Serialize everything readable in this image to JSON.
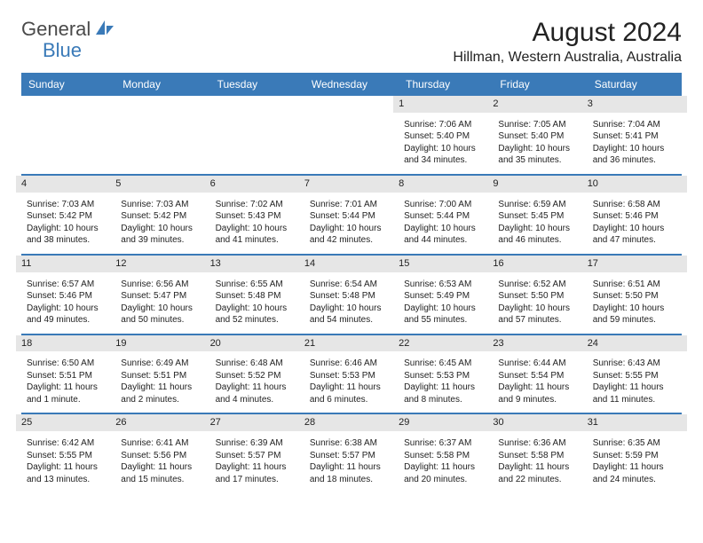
{
  "brand": {
    "part1": "General",
    "part2": "Blue"
  },
  "title": "August 2024",
  "location": "Hillman, Western Australia, Australia",
  "colors": {
    "header_bg": "#3a7ab8",
    "header_text": "#ffffff",
    "daybar_bg": "#e6e6e6",
    "text": "#222222",
    "brand_gray": "#4a4a4a",
    "brand_blue": "#3a7ab8",
    "page_bg": "#ffffff",
    "row_sep": "#3a7ab8"
  },
  "typography": {
    "title_fontsize": 30,
    "location_fontsize": 16,
    "dayhead_fontsize": 12,
    "cell_fontsize": 10
  },
  "day_names": [
    "Sunday",
    "Monday",
    "Tuesday",
    "Wednesday",
    "Thursday",
    "Friday",
    "Saturday"
  ],
  "weeks": [
    [
      null,
      null,
      null,
      null,
      {
        "d": "1",
        "sr": "Sunrise: 7:06 AM",
        "ss": "Sunset: 5:40 PM",
        "dl1": "Daylight: 10 hours",
        "dl2": "and 34 minutes."
      },
      {
        "d": "2",
        "sr": "Sunrise: 7:05 AM",
        "ss": "Sunset: 5:40 PM",
        "dl1": "Daylight: 10 hours",
        "dl2": "and 35 minutes."
      },
      {
        "d": "3",
        "sr": "Sunrise: 7:04 AM",
        "ss": "Sunset: 5:41 PM",
        "dl1": "Daylight: 10 hours",
        "dl2": "and 36 minutes."
      }
    ],
    [
      {
        "d": "4",
        "sr": "Sunrise: 7:03 AM",
        "ss": "Sunset: 5:42 PM",
        "dl1": "Daylight: 10 hours",
        "dl2": "and 38 minutes."
      },
      {
        "d": "5",
        "sr": "Sunrise: 7:03 AM",
        "ss": "Sunset: 5:42 PM",
        "dl1": "Daylight: 10 hours",
        "dl2": "and 39 minutes."
      },
      {
        "d": "6",
        "sr": "Sunrise: 7:02 AM",
        "ss": "Sunset: 5:43 PM",
        "dl1": "Daylight: 10 hours",
        "dl2": "and 41 minutes."
      },
      {
        "d": "7",
        "sr": "Sunrise: 7:01 AM",
        "ss": "Sunset: 5:44 PM",
        "dl1": "Daylight: 10 hours",
        "dl2": "and 42 minutes."
      },
      {
        "d": "8",
        "sr": "Sunrise: 7:00 AM",
        "ss": "Sunset: 5:44 PM",
        "dl1": "Daylight: 10 hours",
        "dl2": "and 44 minutes."
      },
      {
        "d": "9",
        "sr": "Sunrise: 6:59 AM",
        "ss": "Sunset: 5:45 PM",
        "dl1": "Daylight: 10 hours",
        "dl2": "and 46 minutes."
      },
      {
        "d": "10",
        "sr": "Sunrise: 6:58 AM",
        "ss": "Sunset: 5:46 PM",
        "dl1": "Daylight: 10 hours",
        "dl2": "and 47 minutes."
      }
    ],
    [
      {
        "d": "11",
        "sr": "Sunrise: 6:57 AM",
        "ss": "Sunset: 5:46 PM",
        "dl1": "Daylight: 10 hours",
        "dl2": "and 49 minutes."
      },
      {
        "d": "12",
        "sr": "Sunrise: 6:56 AM",
        "ss": "Sunset: 5:47 PM",
        "dl1": "Daylight: 10 hours",
        "dl2": "and 50 minutes."
      },
      {
        "d": "13",
        "sr": "Sunrise: 6:55 AM",
        "ss": "Sunset: 5:48 PM",
        "dl1": "Daylight: 10 hours",
        "dl2": "and 52 minutes."
      },
      {
        "d": "14",
        "sr": "Sunrise: 6:54 AM",
        "ss": "Sunset: 5:48 PM",
        "dl1": "Daylight: 10 hours",
        "dl2": "and 54 minutes."
      },
      {
        "d": "15",
        "sr": "Sunrise: 6:53 AM",
        "ss": "Sunset: 5:49 PM",
        "dl1": "Daylight: 10 hours",
        "dl2": "and 55 minutes."
      },
      {
        "d": "16",
        "sr": "Sunrise: 6:52 AM",
        "ss": "Sunset: 5:50 PM",
        "dl1": "Daylight: 10 hours",
        "dl2": "and 57 minutes."
      },
      {
        "d": "17",
        "sr": "Sunrise: 6:51 AM",
        "ss": "Sunset: 5:50 PM",
        "dl1": "Daylight: 10 hours",
        "dl2": "and 59 minutes."
      }
    ],
    [
      {
        "d": "18",
        "sr": "Sunrise: 6:50 AM",
        "ss": "Sunset: 5:51 PM",
        "dl1": "Daylight: 11 hours",
        "dl2": "and 1 minute."
      },
      {
        "d": "19",
        "sr": "Sunrise: 6:49 AM",
        "ss": "Sunset: 5:51 PM",
        "dl1": "Daylight: 11 hours",
        "dl2": "and 2 minutes."
      },
      {
        "d": "20",
        "sr": "Sunrise: 6:48 AM",
        "ss": "Sunset: 5:52 PM",
        "dl1": "Daylight: 11 hours",
        "dl2": "and 4 minutes."
      },
      {
        "d": "21",
        "sr": "Sunrise: 6:46 AM",
        "ss": "Sunset: 5:53 PM",
        "dl1": "Daylight: 11 hours",
        "dl2": "and 6 minutes."
      },
      {
        "d": "22",
        "sr": "Sunrise: 6:45 AM",
        "ss": "Sunset: 5:53 PM",
        "dl1": "Daylight: 11 hours",
        "dl2": "and 8 minutes."
      },
      {
        "d": "23",
        "sr": "Sunrise: 6:44 AM",
        "ss": "Sunset: 5:54 PM",
        "dl1": "Daylight: 11 hours",
        "dl2": "and 9 minutes."
      },
      {
        "d": "24",
        "sr": "Sunrise: 6:43 AM",
        "ss": "Sunset: 5:55 PM",
        "dl1": "Daylight: 11 hours",
        "dl2": "and 11 minutes."
      }
    ],
    [
      {
        "d": "25",
        "sr": "Sunrise: 6:42 AM",
        "ss": "Sunset: 5:55 PM",
        "dl1": "Daylight: 11 hours",
        "dl2": "and 13 minutes."
      },
      {
        "d": "26",
        "sr": "Sunrise: 6:41 AM",
        "ss": "Sunset: 5:56 PM",
        "dl1": "Daylight: 11 hours",
        "dl2": "and 15 minutes."
      },
      {
        "d": "27",
        "sr": "Sunrise: 6:39 AM",
        "ss": "Sunset: 5:57 PM",
        "dl1": "Daylight: 11 hours",
        "dl2": "and 17 minutes."
      },
      {
        "d": "28",
        "sr": "Sunrise: 6:38 AM",
        "ss": "Sunset: 5:57 PM",
        "dl1": "Daylight: 11 hours",
        "dl2": "and 18 minutes."
      },
      {
        "d": "29",
        "sr": "Sunrise: 6:37 AM",
        "ss": "Sunset: 5:58 PM",
        "dl1": "Daylight: 11 hours",
        "dl2": "and 20 minutes."
      },
      {
        "d": "30",
        "sr": "Sunrise: 6:36 AM",
        "ss": "Sunset: 5:58 PM",
        "dl1": "Daylight: 11 hours",
        "dl2": "and 22 minutes."
      },
      {
        "d": "31",
        "sr": "Sunrise: 6:35 AM",
        "ss": "Sunset: 5:59 PM",
        "dl1": "Daylight: 11 hours",
        "dl2": "and 24 minutes."
      }
    ]
  ]
}
